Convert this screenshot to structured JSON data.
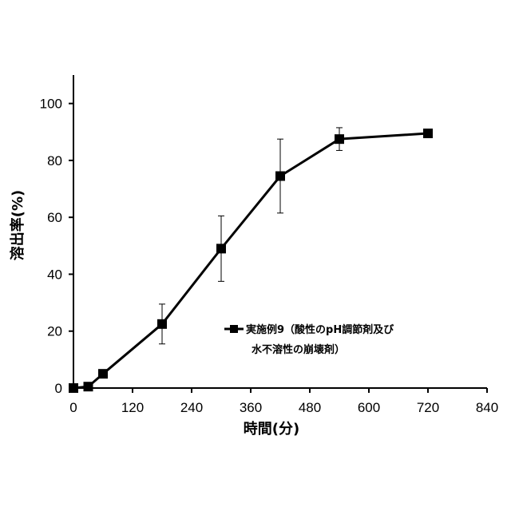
{
  "chart_data": {
    "type": "line",
    "title": "",
    "xlabel": "時間(分)",
    "ylabel": "溶出率(%)",
    "xlim": [
      0,
      840
    ],
    "ylim": [
      0,
      110
    ],
    "xticks": [
      0,
      120,
      240,
      360,
      480,
      600,
      720,
      840
    ],
    "yticks": [
      0,
      20,
      40,
      60,
      80,
      100
    ],
    "grid": false,
    "legend_position": "center-right",
    "series": [
      {
        "name_lines": [
          "実施例9（酸性のpH調節剤及び",
          "水不溶性の崩壊剤）"
        ],
        "marker": "square",
        "color": "#000000",
        "points": [
          {
            "x": 0,
            "y": 0,
            "err": 0
          },
          {
            "x": 30,
            "y": 0.5,
            "err": 0
          },
          {
            "x": 60,
            "y": 5,
            "err": 0
          },
          {
            "x": 180,
            "y": 22.5,
            "err": 7
          },
          {
            "x": 300,
            "y": 49,
            "err": 11.5
          },
          {
            "x": 420,
            "y": 74.5,
            "err": 13
          },
          {
            "x": 540,
            "y": 87.5,
            "err": 4
          },
          {
            "x": 720,
            "y": 89.5,
            "err": 0
          }
        ]
      }
    ]
  }
}
